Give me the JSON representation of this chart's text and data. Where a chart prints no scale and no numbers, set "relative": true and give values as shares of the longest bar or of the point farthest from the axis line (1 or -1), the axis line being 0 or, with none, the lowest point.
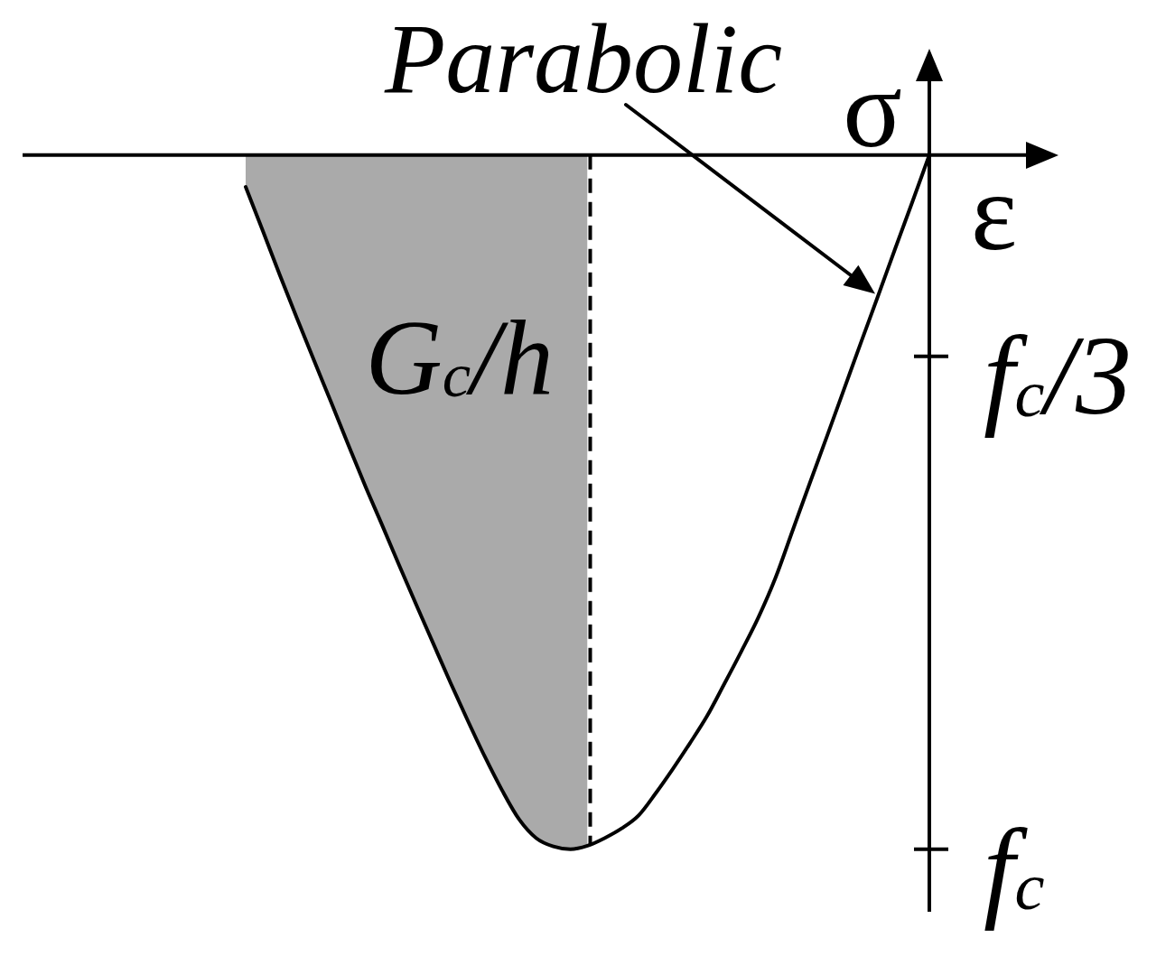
{
  "chart_data": {
    "type": "line",
    "relative": true,
    "categories": [
      null,
      null,
      null,
      null,
      null,
      null,
      null,
      null,
      null,
      null,
      null,
      null,
      null,
      null,
      null,
      null,
      null,
      null,
      null,
      null,
      null,
      null,
      null,
      null,
      null,
      null,
      null,
      null,
      null,
      null,
      null,
      null,
      null,
      null,
      null,
      null,
      null,
      null,
      null,
      null,
      null
    ],
    "series": [
      {
        "type": "area",
        "name": "G$_{c}$/h",
        "color": "#aaaaaa",
        "line_style": "dashed",
        "values": [
          -0.046,
          -0.109,
          -0.173,
          -0.235,
          -0.296,
          -0.356,
          -0.417,
          -0.477,
          -0.534,
          -0.592,
          -0.649,
          -0.705,
          -0.761,
          -0.815,
          -0.867,
          -0.915,
          -0.957,
          -0.984,
          -0.996,
          -1,
          -0.995,
          null,
          null,
          null,
          null,
          null,
          null,
          null,
          null,
          null,
          null,
          null,
          null,
          null,
          null,
          null,
          null,
          null,
          null,
          null,
          null
        ]
      },
      {
        "type": "line",
        "color": "#000000",
        "values": [
          -0.046,
          -0.109,
          -0.173,
          -0.235,
          -0.296,
          -0.356,
          -0.417,
          -0.477,
          -0.534,
          -0.592,
          -0.649,
          -0.705,
          -0.761,
          -0.815,
          -0.867,
          -0.915,
          -0.957,
          -0.984,
          -0.996,
          -1,
          -0.995,
          -0.984,
          -0.97,
          -0.951,
          -0.919,
          -0.884,
          -0.847,
          -0.808,
          -0.762,
          -0.715,
          -0.666,
          -0.609,
          -0.541,
          -0.473,
          -0.406,
          -0.338,
          -0.27,
          -0.203,
          -0.135,
          -0.068,
          0
        ]
      }
    ],
    "xlabel": "ε",
    "ylabel": "σ",
    "annotations": [
      "Parabolic",
      "f$_{c}$/3",
      "f$_{c}$"
    ]
  }
}
